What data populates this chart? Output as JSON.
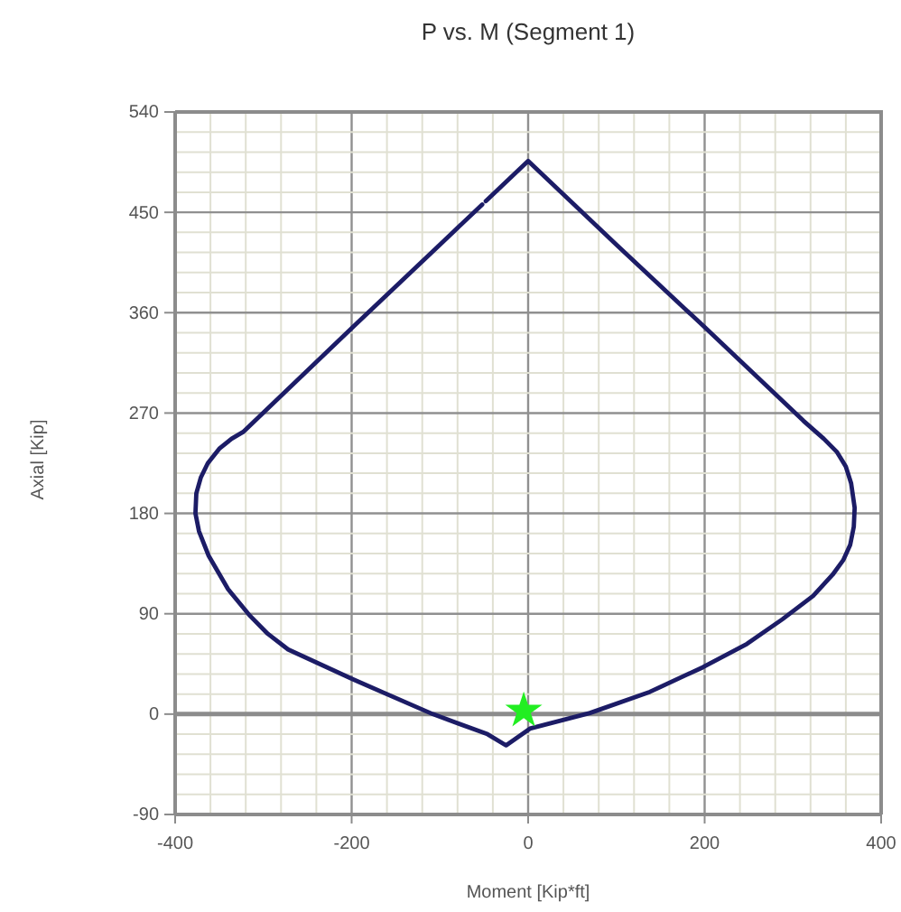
{
  "chart_data": {
    "type": "line",
    "title": "P vs. M (Segment 1)",
    "xlabel": "Moment [Kip*ft]",
    "ylabel": "Axial [Kip]",
    "xlim": [
      -400,
      400
    ],
    "xticks": [
      -400,
      {
        "value": -360,
        "label": null
      },
      {
        "value": -320,
        "label": null
      },
      {
        "value": -280,
        "label": null
      },
      {
        "value": -240,
        "label": null
      },
      -200,
      {
        "value": -160,
        "label": null
      },
      {
        "value": -120,
        "label": null
      },
      {
        "value": -80,
        "label": null
      },
      {
        "value": -40,
        "label": null
      },
      0,
      {
        "value": 40,
        "label": null
      },
      {
        "value": 80,
        "label": null
      },
      {
        "value": 120,
        "label": null
      },
      {
        "value": 160,
        "label": null
      },
      200,
      {
        "value": 240,
        "label": null
      },
      {
        "value": 280,
        "label": null
      },
      {
        "value": 320,
        "label": null
      },
      {
        "value": 360,
        "label": null
      },
      400
    ],
    "ylim": [
      -90,
      540
    ],
    "yticks": [
      -90,
      {
        "value": -72,
        "label": null
      },
      {
        "value": -54,
        "label": null
      },
      {
        "value": -36,
        "label": null
      },
      {
        "value": -18,
        "label": null
      },
      0,
      {
        "value": 18,
        "label": null
      },
      {
        "value": 36,
        "label": null
      },
      {
        "value": 54,
        "label": null
      },
      {
        "value": 72,
        "label": null
      },
      90,
      {
        "value": 108,
        "label": null
      },
      {
        "value": 126,
        "label": null
      },
      {
        "value": 144,
        "label": null
      },
      {
        "value": 162,
        "label": null
      },
      180,
      {
        "value": 198,
        "label": null
      },
      {
        "value": 216,
        "label": null
      },
      {
        "value": 234,
        "label": null
      },
      {
        "value": 252,
        "label": null
      },
      270,
      {
        "value": 288,
        "label": null
      },
      {
        "value": 306,
        "label": null
      },
      {
        "value": 324,
        "label": null
      },
      {
        "value": 342,
        "label": null
      },
      360,
      {
        "value": 378,
        "label": null
      },
      {
        "value": 396,
        "label": null
      },
      {
        "value": 414,
        "label": null
      },
      {
        "value": 432,
        "label": null
      },
      450,
      {
        "value": 468,
        "label": null
      },
      {
        "value": 486,
        "label": null
      },
      {
        "value": 504,
        "label": null
      },
      {
        "value": 522,
        "label": null
      },
      540
    ],
    "grid": true,
    "ref_lines": [
      {
        "axis": "y",
        "value": 0,
        "color": "#8c8c8c"
      }
    ],
    "series": [
      {
        "color": "#1c1c66",
        "x": [
          -48,
          0,
          100,
          200,
          312,
          335,
          350,
          360,
          366,
          370,
          369,
          365,
          357,
          345,
          323,
          288,
          248,
          198,
          138,
          70,
          2,
          -25,
          -46,
          -108,
          -198,
          -272,
          -295,
          -315,
          -340,
          -362,
          -373,
          -377,
          -376,
          -371,
          -363,
          -350,
          -336,
          -323,
          -200,
          -100,
          -52
        ],
        "values": [
          460,
          496,
          421,
          347,
          263,
          247,
          235,
          222,
          207,
          185,
          168,
          152,
          138,
          125,
          106,
          85,
          63,
          42,
          20,
          1,
          -13,
          -28,
          -18,
          0,
          31,
          58,
          72,
          88,
          112,
          142,
          164,
          180,
          198,
          212,
          225,
          238,
          247,
          253,
          346,
          421,
          457
        ]
      },
      {
        "type": "scatter",
        "color": "#22ee22",
        "marker": "star",
        "x": [
          -5
        ],
        "values": [
          3
        ]
      }
    ]
  }
}
